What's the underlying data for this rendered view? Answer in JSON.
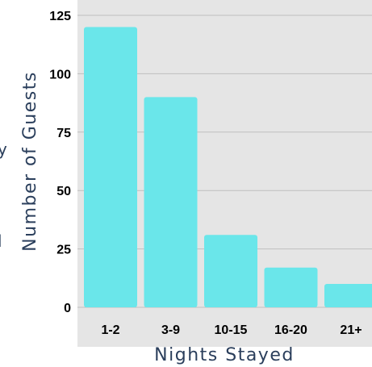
{
  "chart_data": {
    "type": "bar",
    "categories": [
      "1-2",
      "3-9",
      "10-15",
      "16-20",
      "21+"
    ],
    "values": [
      120,
      90,
      31,
      17,
      10
    ],
    "xlabel": "Nights Stayed",
    "ylabel": "Number of Guests",
    "ylim": [
      0,
      125
    ],
    "yticks": [
      0,
      25,
      50,
      75,
      100,
      125
    ],
    "grid": true,
    "legend": "none",
    "colors": {
      "bar": "#6ae6ea",
      "plot_background": "#e5e5e5",
      "grid": "#bfbfbf",
      "axis_title": "#2b3f5c"
    }
  },
  "edge_fragments": {
    "left_partial_1": "y",
    "left_partial_2": "l"
  }
}
